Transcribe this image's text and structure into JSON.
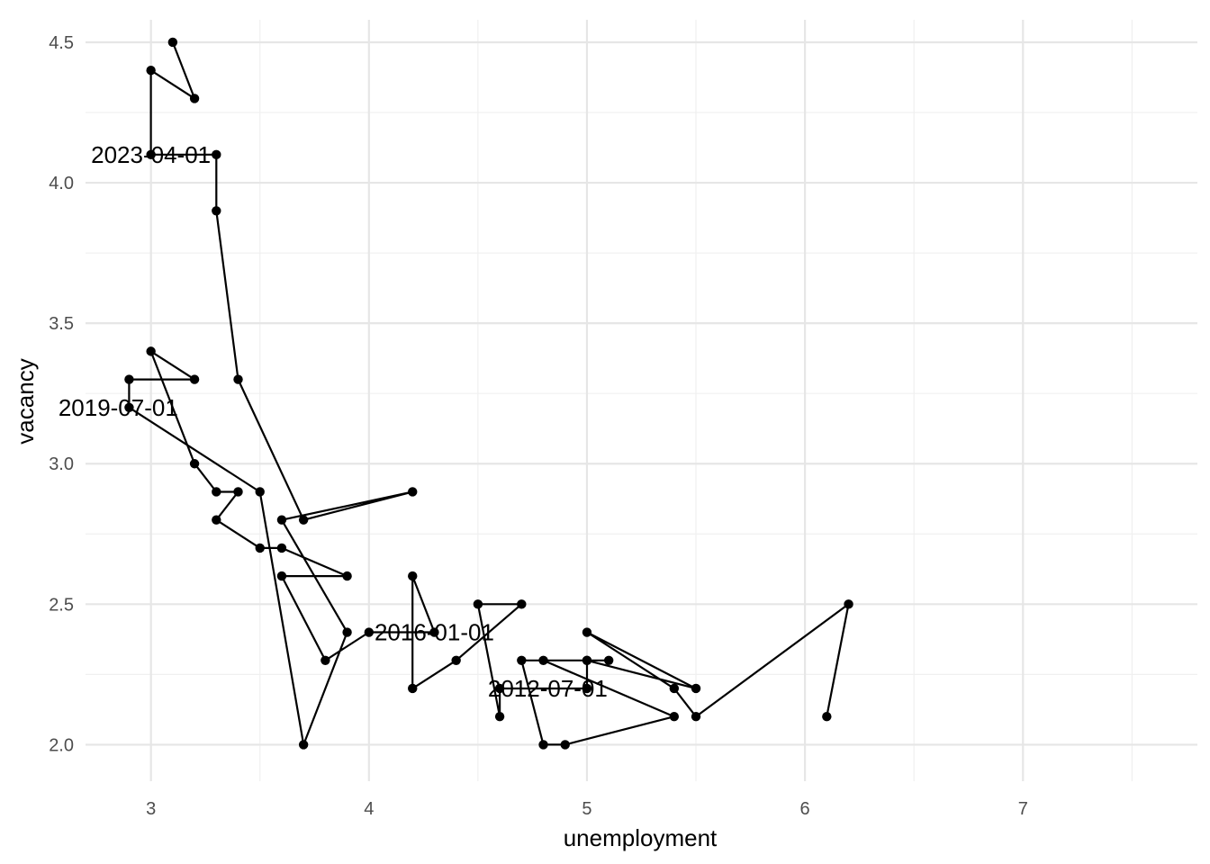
{
  "chart_data": {
    "type": "line",
    "xlabel": "unemployment",
    "ylabel": "vacancy",
    "xlim": [
      2.7,
      7.8
    ],
    "ylim": [
      1.87,
      4.58
    ],
    "x_ticks": [
      3,
      4,
      5,
      6,
      7
    ],
    "x_tick_labels": [
      "3",
      "4",
      "5",
      "6",
      "7"
    ],
    "y_ticks": [
      2.0,
      2.5,
      3.0,
      3.5,
      4.0,
      4.5
    ],
    "y_tick_labels": [
      "2.0",
      "2.5",
      "3.0",
      "3.5",
      "4.0",
      "4.5"
    ],
    "grid": true,
    "series": [
      {
        "points": [
          [
            6.1,
            2.1
          ],
          [
            6.2,
            2.5
          ],
          [
            5.5,
            2.1
          ],
          [
            5.4,
            2.2
          ],
          [
            5.0,
            2.4
          ],
          [
            5.5,
            2.2
          ],
          [
            5.0,
            2.3
          ],
          [
            5.1,
            2.3
          ],
          [
            4.7,
            2.3
          ],
          [
            4.8,
            2.0
          ],
          [
            4.9,
            2.0
          ],
          [
            5.4,
            2.1
          ],
          [
            4.8,
            2.3
          ],
          [
            5.0,
            2.3
          ],
          [
            5.0,
            2.2
          ],
          [
            4.6,
            2.2
          ],
          [
            4.6,
            2.1
          ],
          [
            4.5,
            2.5
          ],
          [
            4.7,
            2.5
          ],
          [
            4.4,
            2.3
          ],
          [
            4.2,
            2.2
          ],
          [
            4.2,
            2.6
          ],
          [
            4.3,
            2.4
          ],
          [
            4.0,
            2.4
          ],
          [
            3.8,
            2.3
          ],
          [
            3.6,
            2.6
          ],
          [
            3.9,
            2.6
          ],
          [
            3.6,
            2.7
          ],
          [
            3.5,
            2.7
          ],
          [
            3.3,
            2.8
          ],
          [
            3.4,
            2.9
          ],
          [
            3.3,
            2.9
          ],
          [
            3.2,
            3.0
          ],
          [
            3.0,
            3.4
          ],
          [
            3.2,
            3.3
          ],
          [
            2.9,
            3.3
          ],
          [
            2.9,
            3.2
          ],
          [
            3.5,
            2.9
          ],
          [
            3.7,
            2.0
          ],
          [
            3.9,
            2.4
          ],
          [
            3.6,
            2.8
          ],
          [
            4.2,
            2.9
          ],
          [
            3.7,
            2.8
          ],
          [
            3.4,
            3.3
          ],
          [
            3.3,
            3.9
          ],
          [
            3.3,
            4.1
          ],
          [
            3.0,
            4.1
          ],
          [
            3.0,
            4.4
          ],
          [
            3.2,
            4.3
          ],
          [
            3.1,
            4.5
          ]
        ]
      }
    ],
    "annotations": [
      {
        "text": "2012-07-01",
        "x": 4.82,
        "y": 2.2
      },
      {
        "text": "2016-01-01",
        "x": 4.3,
        "y": 2.4
      },
      {
        "text": "2019-07-01",
        "x": 2.85,
        "y": 3.2
      },
      {
        "text": "2023-04-01",
        "x": 3.0,
        "y": 4.1
      }
    ]
  }
}
